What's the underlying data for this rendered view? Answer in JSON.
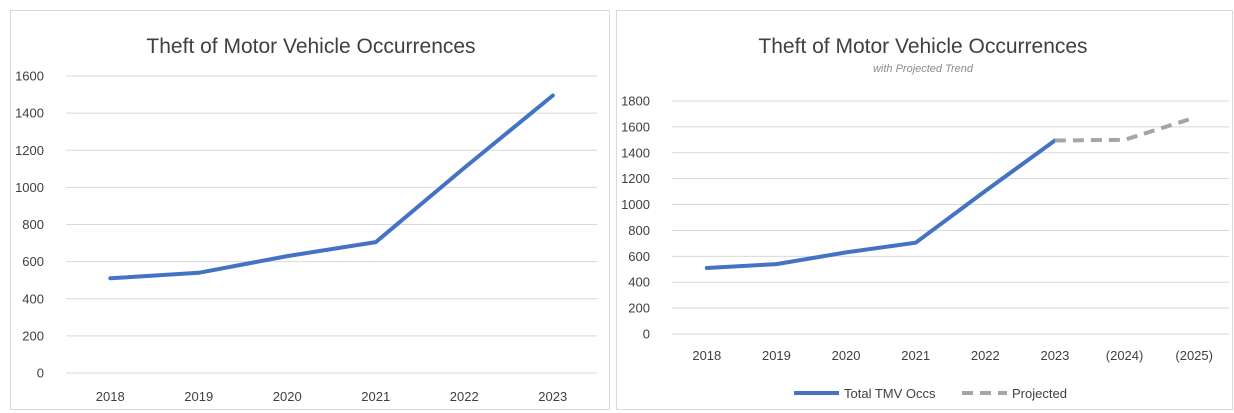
{
  "colors": {
    "actual": "#4472c4",
    "projected": "#a5a5a5"
  },
  "chart_data": [
    {
      "type": "line",
      "title": "Theft of Motor Vehicle Occurrences",
      "categories": [
        "2018",
        "2019",
        "2020",
        "2021",
        "2022",
        "2023"
      ],
      "series": [
        {
          "values": [
            510,
            540,
            630,
            705,
            1105,
            1495
          ]
        }
      ],
      "ylim": [
        0,
        1600
      ],
      "yticks": [
        0,
        200,
        400,
        600,
        800,
        1000,
        1200,
        1400,
        1600
      ],
      "grid": true,
      "legend": "none"
    },
    {
      "type": "line",
      "title": "Theft of Motor Vehicle Occurrences",
      "subtitle": "with Projected Trend",
      "categories": [
        "2018",
        "2019",
        "2020",
        "2021",
        "2022",
        "2023",
        "(2024)",
        "(2025)"
      ],
      "series": [
        {
          "name": "Total TMV Occs",
          "values": [
            510,
            540,
            630,
            705,
            1105,
            1495,
            null,
            null
          ],
          "style": "solid"
        },
        {
          "name": "Projected",
          "values": [
            null,
            null,
            null,
            null,
            null,
            1495,
            1500,
            1670
          ],
          "style": "dashed"
        }
      ],
      "ylim": [
        0,
        1800
      ],
      "yticks": [
        0,
        200,
        400,
        600,
        800,
        1000,
        1200,
        1400,
        1600,
        1800
      ],
      "grid": true,
      "legend": "bottom"
    }
  ]
}
